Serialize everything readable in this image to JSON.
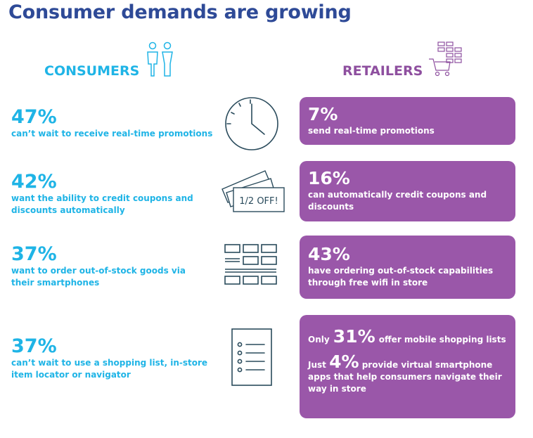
{
  "title": "Consumer demands are growing",
  "consumers_label": "CONSUMERS",
  "retailers_label": "RETAILERS",
  "icons": {
    "consumers": "people-icon",
    "retailers": "shopping-cart-icon",
    "row1": "clock-icon",
    "row2": "coupon-icon",
    "row3": "shelves-icon",
    "row4": "list-icon"
  },
  "coupon_text": "1/2 OFF!",
  "colors": {
    "title": "#2e4a97",
    "consumer": "#1fb4e6",
    "retailer": "#9a57a9",
    "icon": "#2a4b5c"
  },
  "consumer_stats": [
    {
      "pct": "47%",
      "desc": "can’t wait to receive real-time promotions"
    },
    {
      "pct": "42%",
      "desc": "want the ability to credit coupons and discounts automatically"
    },
    {
      "pct": "37%",
      "desc": "want to order out-of-stock goods via their smartphones"
    },
    {
      "pct": "37%",
      "desc": "can’t wait to use a shopping list, in-store item locator or navigator"
    }
  ],
  "retailer_stats": [
    {
      "pct": "7%",
      "desc": "send real-time promotions"
    },
    {
      "pct": "16%",
      "desc": "can automatically credit coupons and discounts"
    },
    {
      "pct": "43%",
      "desc": "have ordering out-of-stock capabilities through free wifi in store"
    }
  ],
  "retailer_last": {
    "line1_prefix": "Only",
    "line1_pct": "31%",
    "line1_suffix": "offer mobile shopping lists",
    "line2_prefix": "Just",
    "line2_pct": "4%",
    "line2_suffix": "provide virtual smartphone apps that help consumers navigate their way in store"
  }
}
